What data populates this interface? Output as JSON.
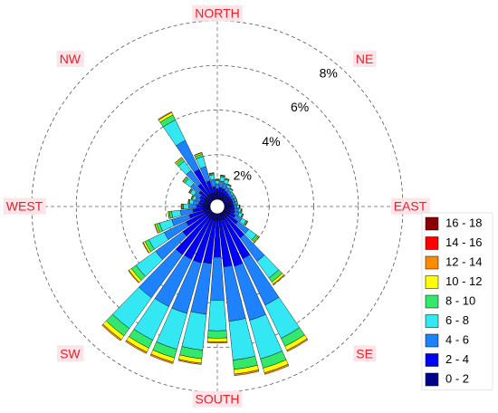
{
  "chart_data": {
    "type": "windrose",
    "direction_labels": [
      "NORTH",
      "NE",
      "EAST",
      "SE",
      "SOUTH",
      "SW",
      "WEST",
      "NW"
    ],
    "categories": [
      null,
      null,
      null,
      null,
      null,
      null,
      null,
      null,
      null,
      null,
      null,
      null,
      null,
      null,
      null,
      null,
      null,
      null,
      null,
      null,
      null,
      null,
      null,
      null,
      null,
      null,
      null,
      null,
      null,
      null,
      null,
      null,
      null,
      null,
      null,
      null
    ],
    "rlim": [
      0,
      8
    ],
    "rticks": [
      {
        "value": 2,
        "label": "2%"
      },
      {
        "value": 4,
        "label": "4%"
      },
      {
        "value": 6,
        "label": "6%"
      },
      {
        "value": 8,
        "label": "8%"
      }
    ],
    "grid": true,
    "legend": "right",
    "series": [
      {
        "name": "0 - 2",
        "color": "#00008b",
        "values": [
          0.3,
          0.3,
          0.3,
          0.3,
          0.3,
          0.3,
          0.3,
          0.3,
          0.3,
          0.3,
          0.3,
          0.3,
          0.3,
          0.3,
          0.3,
          0.3,
          0.3,
          0.3,
          0.3,
          0.3,
          0.3,
          0.3,
          0.3,
          0.3,
          0.3,
          0.3,
          0.3,
          0.3,
          0.3,
          0.3,
          0.3,
          0.3,
          0.3,
          0.3,
          0.3,
          0.3
        ]
      },
      {
        "name": "2 - 4",
        "color": "#0000ff",
        "values": [
          0.18,
          0.24,
          0.21,
          0.15,
          0.12,
          0.09,
          0.09,
          0.09,
          0.09,
          0.12,
          0.15,
          0.18,
          0.27,
          0.51,
          1.11,
          1.98,
          2.16,
          2.1,
          1.65,
          1.95,
          2.01,
          2.01,
          2.04,
          1.29,
          0.93,
          0.69,
          0.48,
          0.3,
          0.21,
          0.18,
          0.24,
          0.39,
          0.63,
          1.23,
          0.57,
          0.27
        ]
      },
      {
        "name": "4 - 6",
        "color": "#1e82ff",
        "values": [
          0.21,
          0.28,
          0.25,
          0.18,
          0.14,
          0.11,
          0.11,
          0.11,
          0.11,
          0.14,
          0.18,
          0.21,
          0.32,
          0.6,
          1.3,
          2.31,
          2.52,
          2.45,
          1.93,
          2.28,
          2.35,
          2.35,
          2.38,
          1.5,
          1.09,
          0.81,
          0.56,
          0.35,
          0.25,
          0.21,
          0.28,
          0.46,
          0.74,
          1.44,
          0.67,
          0.32
        ]
      },
      {
        "name": "6 - 8",
        "color": "#33e8f2",
        "values": [
          0.15,
          0.2,
          0.18,
          0.12,
          0.1,
          0.08,
          0.08,
          0.08,
          0.08,
          0.1,
          0.12,
          0.15,
          0.22,
          0.42,
          0.92,
          1.65,
          1.8,
          1.75,
          1.37,
          1.62,
          1.67,
          1.67,
          1.7,
          1.08,
          0.77,
          0.57,
          0.4,
          0.25,
          0.18,
          0.15,
          0.2,
          0.32,
          0.52,
          1.02,
          0.47,
          0.22
        ]
      },
      {
        "name": "8 - 10",
        "color": "#33e86a",
        "values": [
          0.04,
          0.05,
          0.04,
          0.03,
          0.02,
          0.02,
          0.02,
          0.02,
          0.02,
          0.02,
          0.03,
          0.04,
          0.05,
          0.1,
          0.22,
          0.4,
          0.43,
          0.42,
          0.33,
          0.39,
          0.4,
          0.4,
          0.41,
          0.26,
          0.19,
          0.14,
          0.1,
          0.06,
          0.04,
          0.04,
          0.05,
          0.08,
          0.13,
          0.25,
          0.11,
          0.05
        ]
      },
      {
        "name": "10 - 12",
        "color": "#ffff00",
        "values": [
          0.02,
          0.02,
          0.02,
          0.02,
          0.02,
          0,
          0,
          0,
          0,
          0.02,
          0.02,
          0.02,
          0.03,
          0.05,
          0.11,
          0.2,
          0.22,
          0.21,
          0.17,
          0.2,
          0.2,
          0.2,
          0.2,
          0.13,
          0.09,
          0.07,
          0.05,
          0.03,
          0.02,
          0.02,
          0.02,
          0.04,
          0.06,
          0.12,
          0.06,
          0.03
        ]
      },
      {
        "name": "12 - 14",
        "color": "#ff8c00",
        "values": [
          0.01,
          0.01,
          0,
          0,
          0,
          0,
          0,
          0,
          0,
          0,
          0,
          0,
          0.01,
          0.02,
          0.04,
          0.06,
          0.07,
          0.07,
          0.05,
          0.06,
          0.07,
          0.07,
          0.07,
          0.04,
          0.03,
          0.02,
          0.01,
          0.01,
          0,
          0,
          0.01,
          0.01,
          0.02,
          0.04,
          0.02,
          0.01
        ]
      },
      {
        "name": "14 - 16",
        "color": "#ff0000",
        "values": [
          0,
          0,
          0,
          0,
          0,
          0,
          0,
          0,
          0,
          0,
          0,
          0,
          0,
          0,
          0,
          0,
          0,
          0,
          0,
          0,
          0,
          0,
          0,
          0,
          0,
          0,
          0,
          0,
          0,
          0,
          0,
          0,
          0,
          0,
          0,
          0
        ]
      },
      {
        "name": "16 - 18",
        "color": "#8b0000",
        "values": [
          0,
          0,
          0,
          0,
          0,
          0,
          0,
          0,
          0,
          0,
          0,
          0,
          0,
          0,
          0,
          0,
          0,
          0,
          0,
          0,
          0,
          0,
          0,
          0,
          0,
          0,
          0,
          0,
          0,
          0,
          0,
          0,
          0,
          0,
          0,
          0
        ]
      }
    ]
  }
}
